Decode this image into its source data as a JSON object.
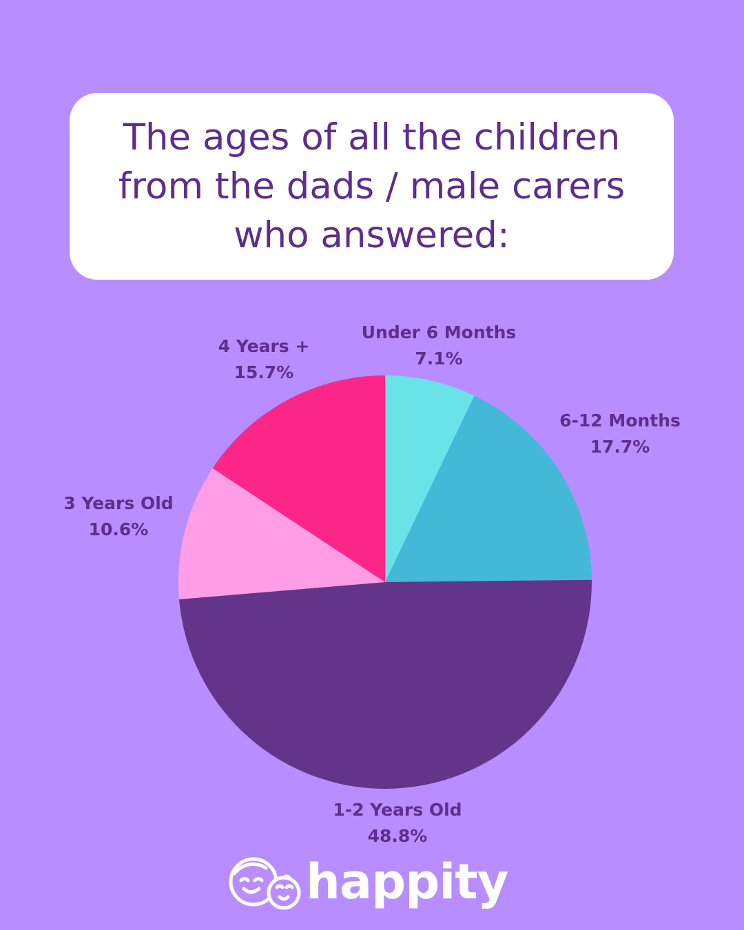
{
  "title": "The ages of all the children\nfrom the dads / male carers\nwho answered:",
  "colors": {
    "background": "#b88dff",
    "title_text": "#5e2e8a",
    "label_text": "#5e2e8a"
  },
  "chart_data": {
    "type": "pie",
    "title": "The ages of all the children from the dads / male carers who answered:",
    "start_angle": "12 o'clock",
    "direction": "clockwise",
    "slices": [
      {
        "label": "Under 6 Months",
        "value": 7.1,
        "value_label": "7.1%",
        "color": "#6ae3e8"
      },
      {
        "label": "6-12 Months",
        "value": 17.7,
        "value_label": "17.7%",
        "color": "#43b8d7"
      },
      {
        "label": "1-2 Years Old",
        "value": 48.8,
        "value_label": "48.8%",
        "color": "#62358a"
      },
      {
        "label": "3 Years Old",
        "value": 10.6,
        "value_label": "10.6%",
        "color": "#ff9de6"
      },
      {
        "label": "4 Years +",
        "value": 15.7,
        "value_label": "15.7%",
        "color": "#fb2688"
      }
    ]
  },
  "brand": {
    "name": "happity",
    "icon": "parent-and-baby-faces-icon"
  }
}
